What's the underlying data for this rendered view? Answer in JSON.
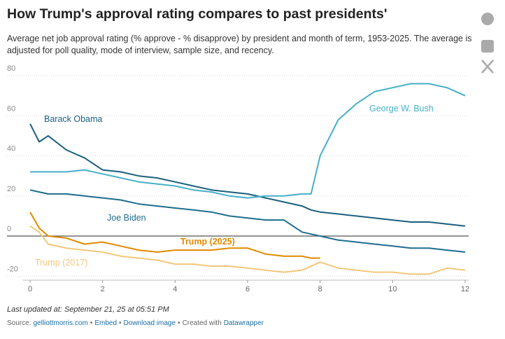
{
  "chart_data": {
    "type": "line",
    "title": "How Trump's approval rating compares to past presidents'",
    "subtitle": "Average net job approval rating (% approve - % disapprove) by president and month of term, 1953-2025. The average is adjusted for poll quality, mode of interview, sample size, and recency.",
    "x": [
      0,
      0.25,
      0.5,
      1,
      1.5,
      2,
      2.5,
      3,
      3.5,
      4,
      4.5,
      5,
      5.5,
      6,
      6.5,
      7,
      7.5,
      7.75,
      8,
      8.5,
      9,
      9.5,
      10,
      10.5,
      11,
      11.5,
      12
    ],
    "series": [
      {
        "name": "Barack Obama",
        "color": "#1b5f7e",
        "values": [
          56,
          47,
          50,
          43,
          39,
          33,
          32,
          30,
          29,
          27,
          25,
          23,
          22,
          21,
          19,
          17,
          15,
          13,
          12,
          11,
          10,
          9,
          8,
          7,
          7,
          6,
          5
        ]
      },
      {
        "name": "George W. Bush",
        "color": "#45b0c8",
        "values": [
          32,
          32,
          32,
          32,
          33,
          31,
          29,
          27,
          26,
          25,
          23,
          22,
          20,
          19,
          20,
          20,
          21,
          21,
          40,
          58,
          66,
          72,
          74,
          76,
          76,
          74,
          70
        ]
      },
      {
        "name": "Joe Biden",
        "color": "#1e6d8e",
        "values": [
          23,
          22,
          21,
          21,
          20,
          19,
          18,
          16,
          15,
          14,
          13,
          12,
          10,
          9,
          8,
          8,
          2,
          1,
          0,
          -2,
          -3,
          -4,
          -5,
          -6,
          -6,
          -7,
          -8
        ]
      },
      {
        "name": "Trump (2025)",
        "color": "#e08a00",
        "values": [
          12,
          4,
          0,
          -1,
          -4,
          -3,
          -5,
          -7,
          -8,
          -7,
          -7,
          -7,
          -6,
          -6,
          -9,
          -10,
          -10,
          -11,
          -11,
          null,
          null,
          null,
          null,
          null,
          null,
          null,
          null
        ]
      },
      {
        "name": "Trump (2017)",
        "color": "#f3c77a",
        "values": [
          5,
          2,
          -4,
          -6,
          -7,
          -8,
          -10,
          -11,
          -12,
          -14,
          -14,
          -15,
          -15,
          -16,
          -17,
          -18,
          -17,
          -15,
          -13,
          -16,
          -17,
          -18,
          -18,
          -19,
          -19,
          -16,
          -17
        ]
      }
    ],
    "xlim": [
      -0.2,
      12.1
    ],
    "xticks": [
      0,
      2,
      4,
      6,
      8,
      10,
      12
    ],
    "ylim": [
      -22,
      84
    ],
    "yticks": [
      -20,
      0,
      20,
      40,
      60,
      80
    ],
    "grid": true
  },
  "footer": {
    "updated": "Last updated at: September 21, 25 at 05:51 PM",
    "source": [
      "Source:",
      "gelliottmorris.com",
      "•",
      "Embed",
      "•",
      "Download image",
      "•",
      "Created with",
      "Datawrapper"
    ]
  }
}
